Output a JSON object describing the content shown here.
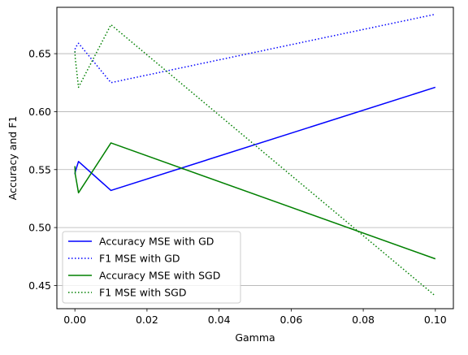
{
  "chart_data": {
    "type": "line",
    "xlabel": "Gamma",
    "ylabel": "Accuracy and F1",
    "xlim": [
      -0.005,
      0.105
    ],
    "ylim": [
      0.43,
      0.69
    ],
    "grid": "horizontal",
    "legend_position": "lower-left",
    "x_ticks": [
      0.0,
      0.02,
      0.04,
      0.06,
      0.08,
      0.1
    ],
    "x_tick_labels": [
      "0.00",
      "0.02",
      "0.04",
      "0.06",
      "0.08",
      "0.10"
    ],
    "y_ticks": [
      0.45,
      0.5,
      0.55,
      0.6,
      0.65
    ],
    "y_tick_labels": [
      "0.45",
      "0.50",
      "0.55",
      "0.60",
      "0.65"
    ],
    "x": [
      0.0,
      0.0001,
      0.001,
      0.01,
      0.1
    ],
    "series": [
      {
        "name": "Accuracy MSE with GD",
        "color": "#0000ff",
        "style": "solid",
        "values": [
          0.546,
          0.548,
          0.557,
          0.532,
          0.621
        ]
      },
      {
        "name": "F1 MSE with GD",
        "color": "#0000ff",
        "style": "dotted",
        "values": [
          0.651,
          0.655,
          0.659,
          0.625,
          0.684
        ]
      },
      {
        "name": "Accuracy MSE with SGD",
        "color": "#008000",
        "style": "solid",
        "values": [
          0.553,
          0.546,
          0.53,
          0.573,
          0.473
        ]
      },
      {
        "name": "F1 MSE with SGD",
        "color": "#008000",
        "style": "dotted",
        "values": [
          0.652,
          0.646,
          0.621,
          0.675,
          0.441
        ]
      }
    ]
  }
}
